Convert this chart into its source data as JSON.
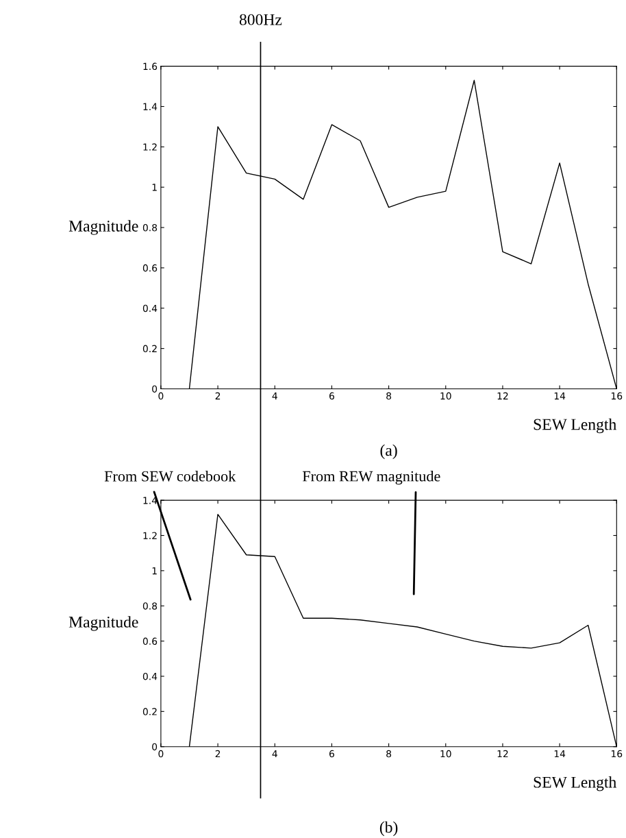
{
  "chart_data": [
    {
      "type": "line",
      "xlabel": "SEW Length",
      "ylabel": "Magnitude",
      "x": [
        1,
        2,
        3,
        4,
        5,
        6,
        7,
        8,
        9,
        10,
        11,
        12,
        13,
        14,
        15,
        16
      ],
      "series": [
        {
          "color": "#000000",
          "values": [
            0,
            1.3,
            1.07,
            1.04,
            0.94,
            1.31,
            1.23,
            0.9,
            0.95,
            0.98,
            1.53,
            0.68,
            0.62,
            1.12,
            0.52,
            0
          ]
        }
      ],
      "xlim": [
        0,
        16
      ],
      "xticks": [
        0,
        2,
        4,
        6,
        8,
        10,
        12,
        14,
        16
      ],
      "ylim": [
        0,
        1.6
      ],
      "yticks": [
        0,
        0.2,
        0.4,
        0.6,
        0.8,
        1,
        1.2,
        1.4,
        1.6
      ],
      "ref_lines": [
        {
          "axis": "x",
          "value": 3.5,
          "label": "800Hz",
          "color": "#000000"
        }
      ],
      "annotations": [
        "(a)"
      ],
      "grid": false,
      "legend": false
    },
    {
      "type": "line",
      "xlabel": "SEW Length",
      "ylabel": "Magnitude",
      "x": [
        1,
        2,
        3,
        4,
        5,
        6,
        7,
        8,
        9,
        10,
        11,
        12,
        13,
        14,
        15,
        16
      ],
      "series": [
        {
          "color": "#000000",
          "values": [
            0,
            1.32,
            1.09,
            1.08,
            0.73,
            0.73,
            0.72,
            0.7,
            0.68,
            0.64,
            0.6,
            0.57,
            0.56,
            0.59,
            0.69,
            0
          ]
        }
      ],
      "xlim": [
        0,
        16
      ],
      "xticks": [
        0,
        2,
        4,
        6,
        8,
        10,
        12,
        14,
        16
      ],
      "ylim": [
        0,
        1.4
      ],
      "yticks": [
        0,
        0.2,
        0.4,
        0.6,
        0.8,
        1,
        1.2,
        1.4
      ],
      "ref_lines": [
        {
          "axis": "x",
          "value": 3.5,
          "color": "#000000"
        }
      ],
      "annotations": [
        "From SEW codebook",
        "From REW magnitude",
        "(b)"
      ],
      "grid": false,
      "legend": false
    }
  ]
}
